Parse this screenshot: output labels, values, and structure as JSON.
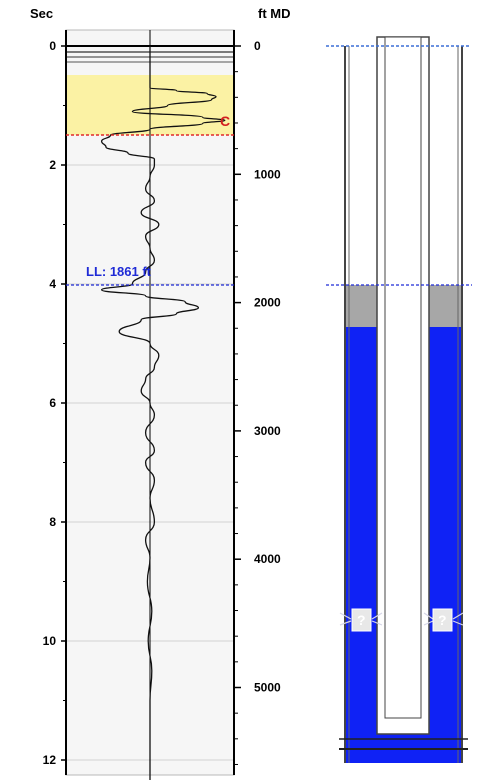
{
  "track": {
    "time_axis_title": "Sec",
    "depth_axis_title": "ft MD",
    "time_ticks": [
      "0",
      "2",
      "4",
      "6",
      "8",
      "10",
      "12"
    ],
    "depth_ticks": [
      "0",
      "1000",
      "2000",
      "3000",
      "4000",
      "5000"
    ],
    "liquid_level_label": "LL: 1861 ft",
    "collar_marker": "C"
  },
  "wellbore": {
    "unknown_marker": "?"
  },
  "colors": {
    "fluid": "#0f22f5",
    "gas_cap": "#a7a7a7",
    "highlight": "#fbf2a4",
    "liquid_level_line": "#1f2bd6",
    "collar_line": "#e02a2a",
    "track_bg": "#f6f6f6"
  },
  "chart_data": {
    "type": "line",
    "y_left_axis": {
      "label": "Sec",
      "range": [
        0,
        12.5
      ],
      "ticks": [
        0,
        2,
        4,
        6,
        8,
        10,
        12
      ]
    },
    "y_right_axis": {
      "label": "ft MD",
      "range": [
        0,
        5400
      ],
      "ticks": [
        0,
        1000,
        2000,
        3000,
        4000,
        5000
      ]
    },
    "annotations": [
      {
        "text": "LL: 1861 ft",
        "time_sec": 4.0,
        "depth_ft": 1861
      },
      {
        "text": "C",
        "time_sec": 1.5
      }
    ],
    "trace": [
      [
        0.0,
        0
      ],
      [
        0.25,
        0
      ],
      [
        0.5,
        0
      ],
      [
        0.7,
        0
      ],
      [
        0.75,
        0.3
      ],
      [
        0.8,
        0.65
      ],
      [
        0.85,
        0.75
      ],
      [
        0.9,
        0.7
      ],
      [
        1.0,
        0.2
      ],
      [
        1.1,
        -0.2
      ],
      [
        1.2,
        0.6
      ],
      [
        1.25,
        0.85
      ],
      [
        1.3,
        0.6
      ],
      [
        1.4,
        0.0
      ],
      [
        1.5,
        -0.45
      ],
      [
        1.6,
        -0.55
      ],
      [
        1.7,
        -0.5
      ],
      [
        1.8,
        -0.25
      ],
      [
        1.9,
        0.05
      ],
      [
        2.0,
        0.05
      ],
      [
        2.2,
        0.0
      ],
      [
        2.4,
        -0.05
      ],
      [
        2.6,
        0.05
      ],
      [
        2.8,
        -0.1
      ],
      [
        3.0,
        0.1
      ],
      [
        3.2,
        -0.05
      ],
      [
        3.4,
        0.0
      ],
      [
        3.6,
        0.05
      ],
      [
        3.8,
        -0.05
      ],
      [
        4.0,
        -0.2
      ],
      [
        4.1,
        -0.55
      ],
      [
        4.2,
        -0.05
      ],
      [
        4.3,
        0.4
      ],
      [
        4.4,
        0.55
      ],
      [
        4.5,
        0.3
      ],
      [
        4.6,
        -0.1
      ],
      [
        4.8,
        -0.35
      ],
      [
        5.0,
        0.0
      ],
      [
        5.2,
        0.1
      ],
      [
        5.4,
        0.05
      ],
      [
        5.6,
        -0.05
      ],
      [
        5.8,
        -0.1
      ],
      [
        6.0,
        0.0
      ],
      [
        6.2,
        0.05
      ],
      [
        6.5,
        -0.05
      ],
      [
        6.8,
        0.05
      ],
      [
        7.0,
        -0.05
      ],
      [
        7.3,
        0.05
      ],
      [
        7.6,
        0.0
      ],
      [
        8.0,
        0.05
      ],
      [
        8.3,
        -0.05
      ],
      [
        8.6,
        0.0
      ],
      [
        9.0,
        -0.03
      ],
      [
        9.5,
        0.02
      ],
      [
        10.0,
        -0.02
      ],
      [
        10.5,
        0.02
      ],
      [
        11.0,
        0.0
      ],
      [
        12.0,
        0.0
      ],
      [
        12.4,
        0.0
      ]
    ]
  }
}
